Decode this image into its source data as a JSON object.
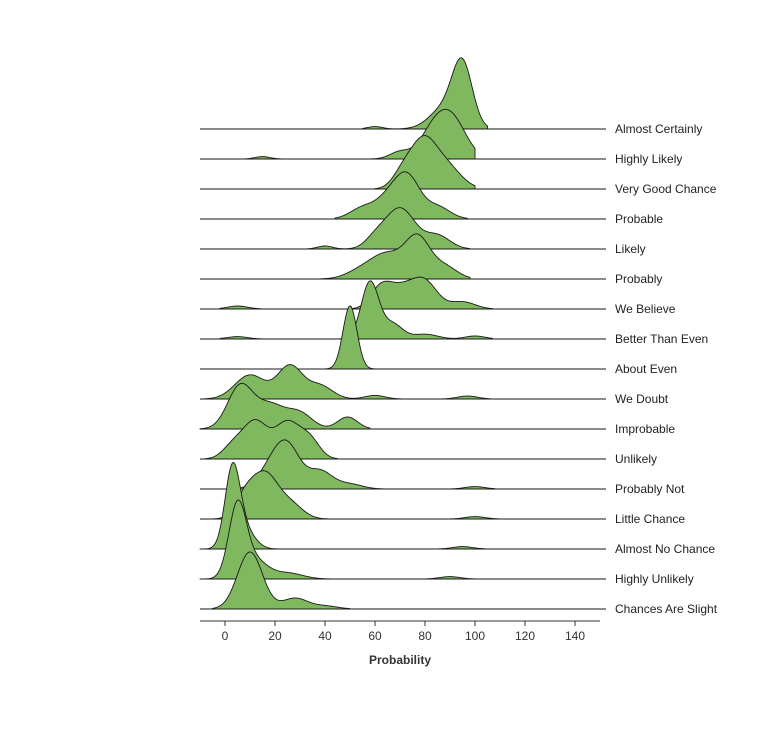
{
  "chart_data": {
    "type": "area",
    "subtype": "ridgeline",
    "title": "",
    "xlabel": "Probability",
    "ylabel": "",
    "xlim": [
      -10,
      150
    ],
    "xticks": [
      0,
      20,
      40,
      60,
      80,
      100,
      120,
      140
    ],
    "fill_color": "#7fb85e",
    "grid": false,
    "series": [
      {
        "name": "Almost Certainly",
        "peaks": [
          [
            95,
            4,
            1.0
          ],
          [
            88,
            6,
            0.35
          ],
          [
            60,
            3,
            0.04
          ]
        ],
        "support": [
          55,
          105
        ]
      },
      {
        "name": "Highly Likely",
        "peaks": [
          [
            90,
            6,
            0.72
          ],
          [
            82,
            5,
            0.3
          ],
          [
            70,
            4,
            0.12
          ],
          [
            15,
            3,
            0.04
          ]
        ],
        "support": [
          8,
          100
        ]
      },
      {
        "name": "Very Good Chance",
        "peaks": [
          [
            79,
            5,
            0.72
          ],
          [
            88,
            6,
            0.4
          ],
          [
            71,
            4,
            0.25
          ]
        ],
        "support": [
          60,
          100
        ]
      },
      {
        "name": "Probable",
        "peaks": [
          [
            73,
            5,
            0.68
          ],
          [
            65,
            5,
            0.3
          ],
          [
            55,
            5,
            0.18
          ],
          [
            85,
            5,
            0.2
          ]
        ],
        "support": [
          44,
          97
        ]
      },
      {
        "name": "Likely",
        "peaks": [
          [
            70,
            6,
            0.68
          ],
          [
            85,
            5,
            0.22
          ],
          [
            60,
            4,
            0.15
          ],
          [
            40,
            3,
            0.05
          ]
        ],
        "support": [
          32,
          98
        ]
      },
      {
        "name": "Probably",
        "peaks": [
          [
            77,
            5,
            0.68
          ],
          [
            65,
            6,
            0.38
          ],
          [
            55,
            6,
            0.15
          ],
          [
            88,
            5,
            0.2
          ]
        ],
        "support": [
          38,
          98
        ]
      },
      {
        "name": "We Believe",
        "peaks": [
          [
            80,
            5,
            0.42
          ],
          [
            70,
            6,
            0.35
          ],
          [
            62,
            4,
            0.28
          ],
          [
            95,
            5,
            0.12
          ],
          [
            5,
            4,
            0.05
          ]
        ],
        "support": [
          -2,
          107
        ]
      },
      {
        "name": "Better Than Even",
        "peaks": [
          [
            58,
            3.5,
            0.95
          ],
          [
            67,
            4,
            0.25
          ],
          [
            80,
            5,
            0.08
          ],
          [
            100,
            4,
            0.05
          ],
          [
            5,
            4,
            0.04
          ]
        ],
        "support": [
          -2,
          107
        ]
      },
      {
        "name": "About Even",
        "peaks": [
          [
            50,
            2.8,
            1.05
          ]
        ],
        "support": [
          40,
          60
        ]
      },
      {
        "name": "We Doubt",
        "peaks": [
          [
            26,
            5,
            0.55
          ],
          [
            10,
            6,
            0.4
          ],
          [
            38,
            5,
            0.22
          ],
          [
            60,
            4,
            0.06
          ],
          [
            97,
            4,
            0.05
          ]
        ],
        "support": [
          -8,
          106
        ]
      },
      {
        "name": "Improbable",
        "peaks": [
          [
            6,
            5,
            0.7
          ],
          [
            18,
            6,
            0.4
          ],
          [
            30,
            5,
            0.25
          ],
          [
            49,
            4,
            0.2
          ]
        ],
        "support": [
          -10,
          58
        ]
      },
      {
        "name": "Unlikely",
        "peaks": [
          [
            12,
            5,
            0.62
          ],
          [
            25,
            5,
            0.6
          ],
          [
            34,
            4,
            0.3
          ],
          [
            3,
            4,
            0.2
          ]
        ],
        "support": [
          -8,
          45
        ]
      },
      {
        "name": "Probably Not",
        "peaks": [
          [
            25,
            5,
            0.68
          ],
          [
            18,
            5,
            0.3
          ],
          [
            38,
            5,
            0.3
          ],
          [
            50,
            5,
            0.08
          ],
          [
            100,
            4,
            0.04
          ]
        ],
        "support": [
          5,
          108
        ]
      },
      {
        "name": "Little Chance",
        "peaks": [
          [
            16,
            5,
            0.72
          ],
          [
            8,
            4,
            0.35
          ],
          [
            26,
            5,
            0.25
          ],
          [
            100,
            4,
            0.04
          ]
        ],
        "support": [
          -8,
          110
        ]
      },
      {
        "name": "Almost No Chance",
        "peaks": [
          [
            3,
            3,
            1.3
          ],
          [
            8,
            4,
            0.3
          ],
          [
            95,
            4,
            0.04
          ]
        ],
        "support": [
          -10,
          105
        ]
      },
      {
        "name": "Highly Unlikely",
        "peaks": [
          [
            5,
            3.5,
            1.2
          ],
          [
            12,
            5,
            0.3
          ],
          [
            25,
            6,
            0.1
          ],
          [
            90,
            4,
            0.04
          ]
        ],
        "support": [
          -10,
          105
        ]
      },
      {
        "name": "Chances Are Slight",
        "peaks": [
          [
            10,
            5,
            0.95
          ],
          [
            28,
            5,
            0.18
          ],
          [
            40,
            5,
            0.05
          ]
        ],
        "support": [
          -5,
          50
        ]
      }
    ]
  }
}
